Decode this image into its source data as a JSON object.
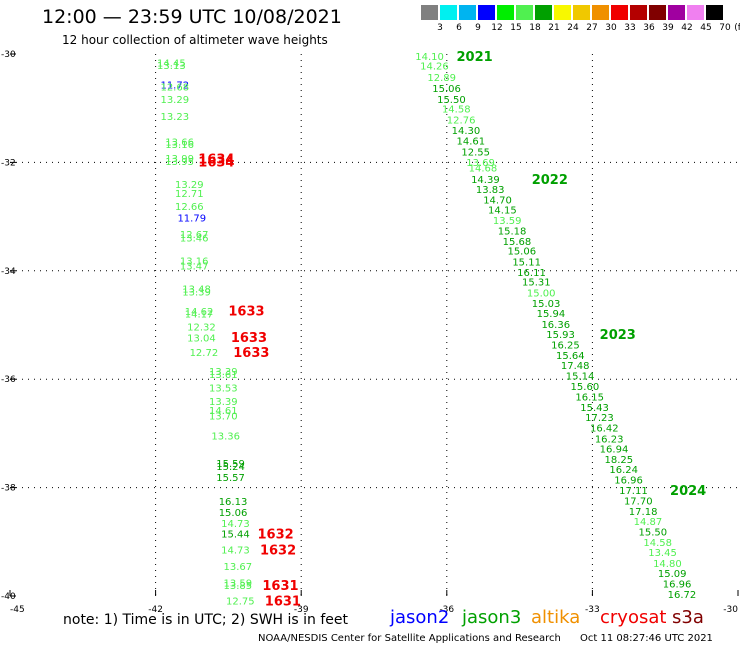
{
  "header": {
    "title": "12:00 — 23:59 UTC 10/08/2021",
    "subtitle": "12 hour collection of altimeter wave heights"
  },
  "color_scale": {
    "unit": "(ft)",
    "colors": [
      "#808080",
      "#00f0f0",
      "#00b4f0",
      "#0000ff",
      "#00ee00",
      "#50f050",
      "#00a000",
      "#f8f800",
      "#f0c800",
      "#f09000",
      "#f00000",
      "#b40000",
      "#800000",
      "#a000a0",
      "#f080f0",
      "#000000"
    ],
    "labels": [
      "3",
      "6",
      "9",
      "12",
      "15",
      "18",
      "21",
      "24",
      "27",
      "30",
      "33",
      "36",
      "39",
      "42",
      "45",
      "70"
    ]
  },
  "axes": {
    "lon_labels": [
      "-45",
      "-42",
      "-39",
      "-36",
      "-33",
      "-30"
    ],
    "lat_labels": [
      "-30",
      "-32",
      "-34",
      "-36",
      "-38",
      "-40"
    ]
  },
  "tracks": [
    {
      "color": "#50f050",
      "label": "14.45",
      "lon": -41.97,
      "lat": -30.16
    },
    {
      "color": "#50f050",
      "label": "13.13",
      "lon": -41.97,
      "lat": -30.2
    },
    {
      "color": "#0000ff",
      "label": "11.72",
      "lon": -41.9,
      "lat": -30.56
    },
    {
      "color": "#50f050",
      "label": "12.68",
      "lon": -41.9,
      "lat": -30.6
    },
    {
      "color": "#50f050",
      "label": "13.29",
      "lon": -41.9,
      "lat": -30.83
    },
    {
      "color": "#50f050",
      "label": "13.23",
      "lon": -41.9,
      "lat": -31.14
    },
    {
      "color": "#50f050",
      "label": "13.66",
      "lon": -41.8,
      "lat": -31.61
    },
    {
      "color": "#50f050",
      "label": "13.16",
      "lon": -41.8,
      "lat": -31.66
    },
    {
      "color": "#50f050",
      "label": "13.99",
      "lon": -41.8,
      "lat": -31.92
    },
    {
      "color": "#50f050",
      "label": "13.95",
      "lon": -41.8,
      "lat": -31.97
    },
    {
      "color": "#f00000",
      "label": "1634",
      "lon": -41.12,
      "lat": -31.93
    },
    {
      "color": "#f00000",
      "label": "1634",
      "lon": -41.12,
      "lat": -31.98
    },
    {
      "color": "#50f050",
      "label": "13.29",
      "lon": -41.6,
      "lat": -32.4
    },
    {
      "color": "#50f050",
      "label": "12.71",
      "lon": -41.6,
      "lat": -32.56
    },
    {
      "color": "#50f050",
      "label": "12.66",
      "lon": -41.6,
      "lat": -32.8
    },
    {
      "color": "#0000ff",
      "label": "11.79",
      "lon": -41.55,
      "lat": -33.02
    },
    {
      "color": "#50f050",
      "label": "12.67",
      "lon": -41.5,
      "lat": -33.32
    },
    {
      "color": "#50f050",
      "label": "13.46",
      "lon": -41.5,
      "lat": -33.39
    },
    {
      "color": "#50f050",
      "label": "13.16",
      "lon": -41.5,
      "lat": -33.81
    },
    {
      "color": "#50f050",
      "label": "13.47",
      "lon": -41.5,
      "lat": -33.9
    },
    {
      "color": "#50f050",
      "label": "13.48",
      "lon": -41.45,
      "lat": -34.33
    },
    {
      "color": "#50f050",
      "label": "13.39",
      "lon": -41.45,
      "lat": -34.38
    },
    {
      "color": "#50f050",
      "label": "14.62",
      "lon": -41.4,
      "lat": -34.74
    },
    {
      "color": "#50f050",
      "label": "14.17",
      "lon": -41.4,
      "lat": -34.79
    },
    {
      "color": "#f00000",
      "label": "1633",
      "lon": -40.5,
      "lat": -34.73
    },
    {
      "color": "#50f050",
      "label": "12.32",
      "lon": -41.35,
      "lat": -35.03
    },
    {
      "color": "#50f050",
      "label": "13.04",
      "lon": -41.35,
      "lat": -35.23
    },
    {
      "color": "#f00000",
      "label": "1633",
      "lon": -40.45,
      "lat": -35.22
    },
    {
      "color": "#50f050",
      "label": "12.72",
      "lon": -41.3,
      "lat": -35.5
    },
    {
      "color": "#f00000",
      "label": "1633",
      "lon": -40.4,
      "lat": -35.5
    },
    {
      "color": "#50f050",
      "label": "13.39",
      "lon": -40.9,
      "lat": -35.85
    },
    {
      "color": "#50f050",
      "label": "13.61",
      "lon": -40.9,
      "lat": -35.9
    },
    {
      "color": "#50f050",
      "label": "13.53",
      "lon": -40.9,
      "lat": -36.15
    },
    {
      "color": "#50f050",
      "label": "13.39",
      "lon": -40.9,
      "lat": -36.4
    },
    {
      "color": "#50f050",
      "label": "14.61",
      "lon": -40.9,
      "lat": -36.57
    },
    {
      "color": "#50f050",
      "label": "13.70",
      "lon": -40.9,
      "lat": -36.67
    },
    {
      "color": "#50f050",
      "label": "13.36",
      "lon": -40.85,
      "lat": -37.04
    },
    {
      "color": "#00a000",
      "label": "15.59",
      "lon": -40.75,
      "lat": -37.55
    },
    {
      "color": "#00a000",
      "label": "15.24",
      "lon": -40.75,
      "lat": -37.6
    },
    {
      "color": "#00a000",
      "label": "15.57",
      "lon": -40.75,
      "lat": -37.8
    },
    {
      "color": "#00a000",
      "label": "16.13",
      "lon": -40.7,
      "lat": -38.25
    },
    {
      "color": "#00a000",
      "label": "15.06",
      "lon": -40.7,
      "lat": -38.45
    },
    {
      "color": "#50f050",
      "label": "14.73",
      "lon": -40.65,
      "lat": -38.65
    },
    {
      "color": "#00a000",
      "label": "15.44",
      "lon": -40.65,
      "lat": -38.85
    },
    {
      "color": "#f00000",
      "label": "1632",
      "lon": -39.9,
      "lat": -38.85
    },
    {
      "color": "#50f050",
      "label": "14.73",
      "lon": -40.65,
      "lat": -39.14
    },
    {
      "color": "#f00000",
      "label": "1632",
      "lon": -39.85,
      "lat": -39.14
    },
    {
      "color": "#50f050",
      "label": "13.67",
      "lon": -40.6,
      "lat": -39.45
    },
    {
      "color": "#50f050",
      "label": "13.59",
      "lon": -40.6,
      "lat": -39.75
    },
    {
      "color": "#50f050",
      "label": "13.85",
      "lon": -40.6,
      "lat": -39.8
    },
    {
      "color": "#f00000",
      "label": "1631",
      "lon": -39.8,
      "lat": -39.8
    },
    {
      "color": "#50f050",
      "label": "12.75",
      "lon": -40.55,
      "lat": -40.08
    },
    {
      "color": "#f00000",
      "label": "1631",
      "lon": -39.75,
      "lat": -40.08
    },
    {
      "color": "#50f050",
      "label": "14.10",
      "lon": -36.65,
      "lat": -30.04
    },
    {
      "color": "#00a000",
      "label": "2021",
      "lon": -35.8,
      "lat": -30.04
    },
    {
      "color": "#50f050",
      "label": "14.26",
      "lon": -36.55,
      "lat": -30.21
    },
    {
      "color": "#50f050",
      "label": "12.89",
      "lon": -36.4,
      "lat": -30.42
    },
    {
      "color": "#00a000",
      "label": "15.06",
      "lon": -36.3,
      "lat": -30.63
    },
    {
      "color": "#00a000",
      "label": "15.50",
      "lon": -36.2,
      "lat": -30.83
    },
    {
      "color": "#50f050",
      "label": "14.58",
      "lon": -36.1,
      "lat": -31.01
    },
    {
      "color": "#50f050",
      "label": "12.76",
      "lon": -36.0,
      "lat": -31.21
    },
    {
      "color": "#00a000",
      "label": "14.30",
      "lon": -35.9,
      "lat": -31.4
    },
    {
      "color": "#00a000",
      "label": "14.61",
      "lon": -35.8,
      "lat": -31.6
    },
    {
      "color": "#00a000",
      "label": "12.55",
      "lon": -35.7,
      "lat": -31.8
    },
    {
      "color": "#50f050",
      "label": "13.69",
      "lon": -35.6,
      "lat": -31.99
    },
    {
      "color": "#50f050",
      "label": "14.68",
      "lon": -35.55,
      "lat": -32.09
    },
    {
      "color": "#00a000",
      "label": "14.39",
      "lon": -35.5,
      "lat": -32.31
    },
    {
      "color": "#00a000",
      "label": "2022",
      "lon": -34.25,
      "lat": -32.31
    },
    {
      "color": "#00a000",
      "label": "13.83",
      "lon": -35.4,
      "lat": -32.49
    },
    {
      "color": "#00a000",
      "label": "14.70",
      "lon": -35.25,
      "lat": -32.68
    },
    {
      "color": "#00a000",
      "label": "14.15",
      "lon": -35.15,
      "lat": -32.87
    },
    {
      "color": "#50f050",
      "label": "13.59",
      "lon": -35.05,
      "lat": -33.06
    },
    {
      "color": "#00a000",
      "label": "15.18",
      "lon": -34.95,
      "lat": -33.26
    },
    {
      "color": "#00a000",
      "label": "15.68",
      "lon": -34.85,
      "lat": -33.45
    },
    {
      "color": "#00a000",
      "label": "15.06",
      "lon": -34.75,
      "lat": -33.63
    },
    {
      "color": "#00a000",
      "label": "15.11",
      "lon": -34.65,
      "lat": -33.83
    },
    {
      "color": "#00a000",
      "label": "16.11",
      "lon": -34.55,
      "lat": -34.02
    },
    {
      "color": "#00a000",
      "label": "15.31",
      "lon": -34.45,
      "lat": -34.2
    },
    {
      "color": "#50f050",
      "label": "15.00",
      "lon": -34.35,
      "lat": -34.4
    },
    {
      "color": "#00a000",
      "label": "15.03",
      "lon": -34.25,
      "lat": -34.59
    },
    {
      "color": "#00a000",
      "label": "15.94",
      "lon": -34.15,
      "lat": -34.78
    },
    {
      "color": "#00a000",
      "label": "16.36",
      "lon": -34.05,
      "lat": -34.98
    },
    {
      "color": "#00a000",
      "label": "15.93",
      "lon": -33.95,
      "lat": -35.17
    },
    {
      "color": "#00a000",
      "label": "2023",
      "lon": -32.85,
      "lat": -35.17
    },
    {
      "color": "#00a000",
      "label": "16.25",
      "lon": -33.85,
      "lat": -35.36
    },
    {
      "color": "#00a000",
      "label": "15.64",
      "lon": -33.75,
      "lat": -35.55
    },
    {
      "color": "#00a000",
      "label": "17.48",
      "lon": -33.65,
      "lat": -35.74
    },
    {
      "color": "#00a000",
      "label": "15.14",
      "lon": -33.55,
      "lat": -35.93
    },
    {
      "color": "#00a000",
      "label": "15.60",
      "lon": -33.45,
      "lat": -36.13
    },
    {
      "color": "#00a000",
      "label": "16.15",
      "lon": -33.35,
      "lat": -36.32
    },
    {
      "color": "#00a000",
      "label": "15.43",
      "lon": -33.25,
      "lat": -36.51
    },
    {
      "color": "#00a000",
      "label": "17.23",
      "lon": -33.15,
      "lat": -36.7
    },
    {
      "color": "#00a000",
      "label": "16.42",
      "lon": -33.05,
      "lat": -36.89
    },
    {
      "color": "#00a000",
      "label": "16.23",
      "lon": -32.95,
      "lat": -37.09
    },
    {
      "color": "#00a000",
      "label": "16.94",
      "lon": -32.85,
      "lat": -37.28
    },
    {
      "color": "#00a000",
      "label": "18.25",
      "lon": -32.75,
      "lat": -37.47
    },
    {
      "color": "#00a000",
      "label": "16.24",
      "lon": -32.65,
      "lat": -37.66
    },
    {
      "color": "#00a000",
      "label": "16.96",
      "lon": -32.55,
      "lat": -37.85
    },
    {
      "color": "#00a000",
      "label": "17.11",
      "lon": -32.45,
      "lat": -38.04
    },
    {
      "color": "#00a000",
      "label": "2024",
      "lon": -31.4,
      "lat": -38.04
    },
    {
      "color": "#00a000",
      "label": "17.70",
      "lon": -32.35,
      "lat": -38.24
    },
    {
      "color": "#00a000",
      "label": "17.18",
      "lon": -32.25,
      "lat": -38.43
    },
    {
      "color": "#50f050",
      "label": "14.87",
      "lon": -32.15,
      "lat": -38.62
    },
    {
      "color": "#00a000",
      "label": "15.50",
      "lon": -32.05,
      "lat": -38.81
    },
    {
      "color": "#50f050",
      "label": "14.58",
      "lon": -31.95,
      "lat": -39.0
    },
    {
      "color": "#50f050",
      "label": "13.45",
      "lon": -31.85,
      "lat": -39.19
    },
    {
      "color": "#50f050",
      "label": "14.80",
      "lon": -31.75,
      "lat": -39.39
    },
    {
      "color": "#00a000",
      "label": "15.09",
      "lon": -31.65,
      "lat": -39.58
    },
    {
      "color": "#00a000",
      "label": "16.96",
      "lon": -31.55,
      "lat": -39.77
    },
    {
      "color": "#00a000",
      "label": "16.72",
      "lon": -31.45,
      "lat": -39.96
    }
  ],
  "footer": {
    "note": "note: 1) Time is in UTC; 2) SWH is in feet",
    "legend": [
      {
        "name": "jason2",
        "color": "#0000ff"
      },
      {
        "name": "jason3",
        "color": "#00a000"
      },
      {
        "name": "altika",
        "color": "#f09000"
      },
      {
        "name": "cryosat",
        "color": "#f00000"
      },
      {
        "name": "s3a",
        "color": "#800000"
      }
    ],
    "credit": "NOAA/NESDIS Center for Satellite Applications and Research",
    "timestamp": "Oct 11 08:27:46 UTC 2021"
  }
}
